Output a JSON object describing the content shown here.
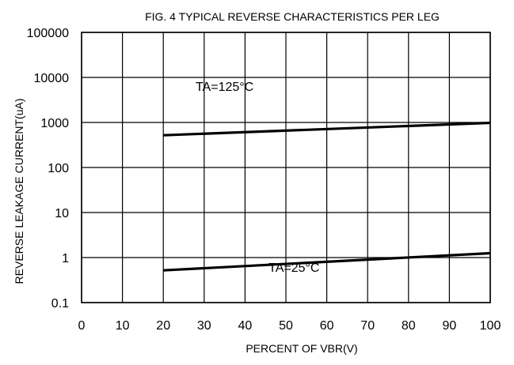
{
  "chart_data": {
    "type": "line",
    "title": "FIG. 4 TYPICAL REVERSE CHARACTERISTICS PER LEG",
    "xlabel": "PERCENT OF VBR(V)",
    "ylabel": "REVERSE LEAKAGE CURRENT(uA)",
    "xlim": [
      0,
      100
    ],
    "ylim": [
      0.1,
      100000
    ],
    "yscale": "log",
    "grid": true,
    "x_ticks": [
      0,
      10,
      20,
      30,
      40,
      50,
      60,
      70,
      80,
      90,
      100
    ],
    "x_tick_labels": [
      "0",
      "10",
      "20",
      "30",
      "40",
      "50",
      "60",
      "70",
      "80",
      "90",
      "100"
    ],
    "y_ticks": [
      0.1,
      1,
      10,
      100,
      1000,
      10000,
      100000
    ],
    "y_tick_labels": [
      "0.1",
      "1",
      "10",
      "100",
      "1000",
      "10000",
      "100000"
    ],
    "series": [
      {
        "x": [
          20,
          100
        ],
        "y": [
          520,
          980
        ]
      },
      {
        "x": [
          20,
          100
        ],
        "y": [
          0.52,
          1.25
        ]
      }
    ],
    "annotations": [
      {
        "text": "TA=125°C",
        "x": 35,
        "y": 5000
      },
      {
        "text": "TA=25°C",
        "x": 52,
        "y": 0.48
      }
    ],
    "colors": {
      "line": "#000000",
      "grid": "#000000",
      "background": "#ffffff"
    }
  }
}
